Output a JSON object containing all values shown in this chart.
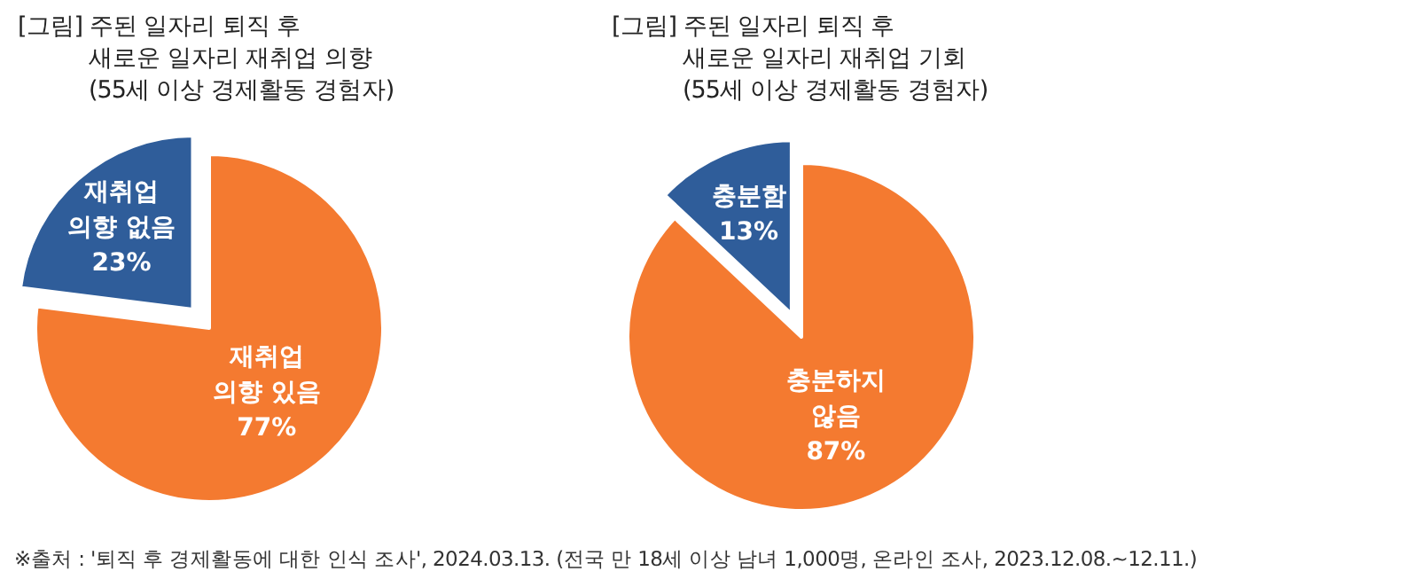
{
  "chart_data": [
    {
      "type": "pie",
      "title": "[그림] 주된 일자리 퇴직 후 새로운 일자리 재취업 의향",
      "subtitle": "(55세 이상 경제활동 경험자)",
      "categories": [
        "재취업 의향 없음",
        "재취업 의향 있음"
      ],
      "values": [
        23,
        77
      ],
      "colors": [
        "#2f5d9a",
        "#f47a30"
      ],
      "value_labels": [
        "23%",
        "77%"
      ]
    },
    {
      "type": "pie",
      "title": "[그림] 주된 일자리 퇴직 후 새로운 일자리 재취업 기회",
      "subtitle": "(55세 이상 경제활동 경험자)",
      "categories": [
        "충분함",
        "충분하지 않음"
      ],
      "values": [
        13,
        87
      ],
      "colors": [
        "#2f5d9a",
        "#f47a30"
      ],
      "value_labels": [
        "13%",
        "87%"
      ],
      "annotations": [
        "※출처 : '퇴직 후 경제활동에 대한 인식 조사', 2024.03.13. (전국 만 18세 이상 남녀 1,000명, 온라인 조사, 2023.12.08.~12.11.)"
      ]
    }
  ]
}
